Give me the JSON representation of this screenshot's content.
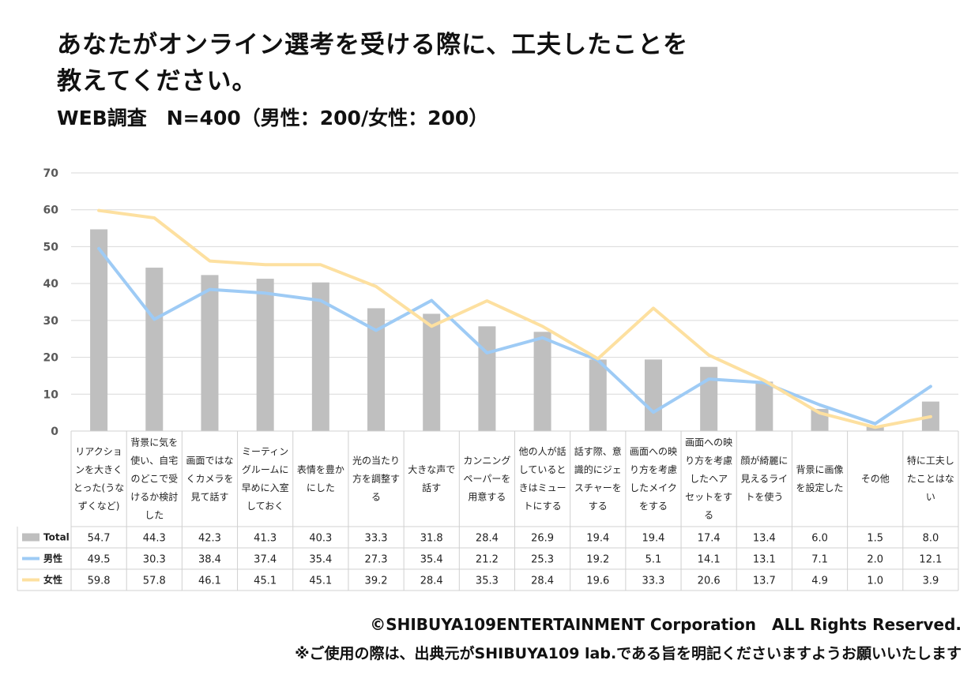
{
  "title_line1": "あなたがオンライン選考を受ける際に、工夫したことを",
  "title_line2": "教えてください。",
  "subtitle": "WEB調査　N=400（男性：200/女性：200）",
  "copyright": "©SHIBUYA109ENTERTAINMENT Corporation　ALL Rights Reserved.",
  "notice": "※ご使用の際は、出典元がSHIBUYA109 lab.である旨を明記くださいますようお願いいたします",
  "colors": {
    "total": "#bfbfbf",
    "male": "#9ecbf5",
    "female": "#fde0a0",
    "grid": "#d9d9d9",
    "axis_text": "#595959"
  },
  "chart_data": {
    "type": "bar+line",
    "ylim": [
      0,
      70
    ],
    "yticks": [
      0,
      10,
      20,
      30,
      40,
      50,
      60,
      70
    ],
    "categories": [
      [
        "リアクショ",
        "ンを大きく",
        "とった(うな",
        "ずくなど)"
      ],
      [
        "背景に気を",
        "使い、自宅",
        "のどこで受",
        "けるか検討",
        "した"
      ],
      [
        "画面ではな",
        "くカメラを",
        "見て話す"
      ],
      [
        "ミーティン",
        "グルームに",
        "早めに入室",
        "しておく"
      ],
      [
        "表情を豊か",
        "にした"
      ],
      [
        "光の当たり",
        "方を調整す",
        "る"
      ],
      [
        "大きな声で",
        "話す"
      ],
      [
        "カンニング",
        "ペーパーを",
        "用意する"
      ],
      [
        "他の人が話",
        "していると",
        "きはミュー",
        "トにする"
      ],
      [
        "話す際、意",
        "識的にジェ",
        "スチャーを",
        "する"
      ],
      [
        "画面への映",
        "り方を考慮",
        "したメイク",
        "をする"
      ],
      [
        "画面への映",
        "り方を考慮",
        "したヘア",
        "セットをす",
        "る"
      ],
      [
        "顔が綺麗に",
        "見えるライ",
        "トを使う"
      ],
      [
        "背景に画像",
        "を設定した"
      ],
      [
        "その他"
      ],
      [
        "特に工夫し",
        "たことはな",
        "い"
      ]
    ],
    "series": [
      {
        "name": "Total",
        "kind": "bar",
        "values": [
          "54.7",
          "44.3",
          "42.3",
          "41.3",
          "40.3",
          "33.3",
          "31.8",
          "28.4",
          "26.9",
          "19.4",
          "19.4",
          "17.4",
          "13.4",
          "6.0",
          "1.5",
          "8.0"
        ]
      },
      {
        "name": "男性",
        "kind": "line",
        "values": [
          "49.5",
          "30.3",
          "38.4",
          "37.4",
          "35.4",
          "27.3",
          "35.4",
          "21.2",
          "25.3",
          "19.2",
          "5.1",
          "14.1",
          "13.1",
          "7.1",
          "2.0",
          "12.1"
        ]
      },
      {
        "name": "女性",
        "kind": "line",
        "values": [
          "59.8",
          "57.8",
          "46.1",
          "45.1",
          "45.1",
          "39.2",
          "28.4",
          "35.3",
          "28.4",
          "19.6",
          "33.3",
          "20.6",
          "13.7",
          "4.9",
          "1.0",
          "3.9"
        ]
      }
    ]
  }
}
